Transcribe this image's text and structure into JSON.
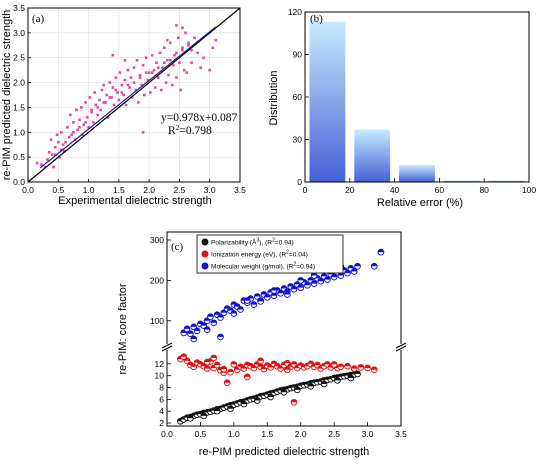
{
  "chart_data": [
    {
      "panel_label": "(a)",
      "type": "scatter",
      "xlabel": "Experimental dielectric strength",
      "ylabel": "re-PIM predicted dielectric strength",
      "xlim": [
        0,
        3.5
      ],
      "ylim": [
        0,
        3.5
      ],
      "xticks": [
        "0.0",
        "0.5",
        "1.0",
        "1.5",
        "2.0",
        "2.5",
        "3.0",
        "3.5"
      ],
      "yticks": [
        "0.0",
        "0.5",
        "1.0",
        "1.5",
        "2.0",
        "2.5",
        "3.0",
        "3.5"
      ],
      "grid": true,
      "fit_equation": "y=0.978x+0.087",
      "r2_label": "R",
      "r2_value": "=0.798",
      "fit_line": {
        "slope": 0.978,
        "intercept": 0.087,
        "x_range": [
          0.2,
          3.1
        ],
        "color": "#1a1aa0"
      },
      "identity_line": {
        "x_range": [
          0,
          3.5
        ],
        "color": "#000000"
      },
      "marker_color": "#e8479c",
      "x": [
        0.15,
        0.22,
        0.28,
        0.32,
        0.35,
        0.38,
        0.4,
        0.42,
        0.45,
        0.48,
        0.5,
        0.52,
        0.55,
        0.58,
        0.6,
        0.65,
        0.68,
        0.7,
        0.72,
        0.75,
        0.78,
        0.8,
        0.82,
        0.85,
        0.88,
        0.9,
        0.92,
        0.95,
        0.98,
        1.0,
        1.02,
        1.05,
        1.08,
        1.1,
        1.12,
        1.15,
        1.18,
        1.2,
        1.22,
        1.25,
        1.28,
        1.3,
        1.32,
        1.35,
        1.38,
        1.4,
        1.42,
        1.45,
        1.48,
        1.5,
        1.52,
        1.55,
        1.58,
        1.6,
        1.62,
        1.65,
        1.68,
        1.7,
        1.72,
        1.75,
        1.78,
        1.8,
        1.82,
        1.85,
        1.88,
        1.9,
        1.92,
        1.95,
        1.98,
        2.0,
        2.02,
        2.05,
        2.08,
        2.1,
        2.12,
        2.15,
        2.18,
        2.2,
        2.22,
        2.25,
        2.28,
        2.3,
        2.32,
        2.35,
        2.38,
        2.4,
        2.42,
        2.45,
        2.48,
        2.5,
        2.52,
        2.55,
        2.58,
        2.6,
        2.62,
        2.65,
        2.7,
        2.75,
        2.8,
        2.85,
        2.9,
        3.0,
        3.05,
        3.1,
        0.45,
        0.55,
        0.62,
        0.75,
        0.85,
        0.95,
        1.05,
        1.15,
        1.25,
        1.35,
        1.45,
        1.55,
        1.65,
        1.75,
        1.85,
        1.95,
        2.05,
        2.15,
        2.25,
        2.35,
        2.45,
        2.55,
        2.65,
        2.45,
        2.55,
        1.9,
        2.3,
        1.6,
        1.4,
        2.7
      ],
      "y": [
        0.38,
        0.35,
        0.3,
        0.45,
        0.6,
        0.85,
        0.55,
        0.3,
        0.7,
        0.95,
        0.8,
        0.5,
        1.0,
        0.75,
        0.62,
        1.1,
        0.9,
        1.35,
        0.95,
        1.2,
        0.85,
        1.45,
        1.05,
        1.25,
        1.5,
        0.95,
        1.15,
        1.6,
        1.3,
        1.1,
        1.7,
        1.4,
        1.2,
        1.8,
        1.55,
        1.35,
        1.65,
        1.45,
        1.85,
        1.95,
        1.6,
        1.75,
        1.3,
        2.0,
        1.7,
        1.9,
        1.55,
        2.1,
        1.8,
        1.65,
        2.2,
        1.95,
        1.75,
        2.05,
        1.55,
        2.25,
        1.9,
        2.1,
        1.7,
        2.3,
        1.85,
        2.45,
        1.6,
        2.15,
        1.95,
        2.35,
        1.75,
        2.5,
        2.05,
        2.2,
        1.8,
        2.55,
        2.25,
        1.9,
        2.4,
        2.1,
        2.6,
        1.85,
        2.3,
        2.7,
        2.0,
        2.45,
        2.15,
        2.8,
        1.95,
        2.35,
        2.55,
        2.1,
        2.9,
        2.4,
        1.85,
        2.65,
        2.25,
        3.0,
        2.2,
        2.75,
        2.4,
        2.9,
        2.6,
        2.3,
        2.5,
        2.25,
        2.7,
        2.85,
        0.55,
        0.65,
        0.8,
        1.0,
        1.1,
        1.2,
        1.45,
        1.5,
        1.6,
        1.7,
        1.85,
        1.8,
        1.95,
        2.0,
        2.1,
        2.2,
        2.2,
        2.3,
        2.4,
        2.45,
        2.6,
        2.7,
        2.8,
        3.15,
        3.1,
        1.0,
        2.85,
        2.45,
        2.55,
        2.65
      ]
    },
    {
      "panel_label": "(b)",
      "type": "bar",
      "xlabel": "Relative error (%)",
      "ylabel": "Distribution",
      "xlim": [
        0,
        100
      ],
      "ylim": [
        0,
        120
      ],
      "xticks": [
        "0",
        "20",
        "40",
        "60",
        "80",
        "100"
      ],
      "yticks": [
        "0",
        "30",
        "60",
        "90",
        "120"
      ],
      "grid": false,
      "bin_edges": [
        0,
        20,
        40,
        60,
        80,
        100
      ],
      "values": [
        113,
        37,
        12,
        1,
        1
      ],
      "bar_color_top": "#bfe6ff",
      "bar_color_bottom": "#4a66d8"
    },
    {
      "panel_label": "(c)",
      "type": "scatter",
      "xlabel": "re-PIM predicted dielectric strength",
      "ylabel": "re-PIM: core factor",
      "xlim": [
        0,
        3.5
      ],
      "xticks": [
        "0.0",
        "0.5",
        "1.0",
        "1.5",
        "2.0",
        "2.5",
        "3.0",
        "3.5"
      ],
      "y_lower_ticks": [
        "2",
        "4",
        "6",
        "8",
        "10",
        "12"
      ],
      "y_upper_ticks": [
        "100",
        "200",
        "300"
      ],
      "y_break": true,
      "lower_ylim": [
        2,
        14
      ],
      "upper_ylim": [
        40,
        300
      ],
      "legend_placement": "top-left",
      "series": [
        {
          "name": "Polarizability (Å",
          "name_sup": "3",
          "name_tail": "), (R",
          "r_sup": "2",
          "r_tail": "=0.94)",
          "color": "#111111",
          "segment": "lower",
          "x": [
            0.2,
            0.25,
            0.3,
            0.35,
            0.4,
            0.45,
            0.5,
            0.55,
            0.6,
            0.65,
            0.7,
            0.75,
            0.8,
            0.85,
            0.9,
            0.95,
            1.0,
            1.05,
            1.1,
            1.15,
            1.2,
            1.25,
            1.3,
            1.35,
            1.4,
            1.45,
            1.5,
            1.55,
            1.6,
            1.65,
            1.7,
            1.75,
            1.8,
            1.85,
            1.9,
            1.95,
            2.0,
            2.05,
            2.1,
            2.15,
            2.2,
            2.25,
            2.3,
            2.35,
            2.4,
            2.45,
            2.5,
            2.55,
            2.6,
            2.65,
            2.7,
            2.75,
            2.8,
            2.85,
            0.35,
            0.55,
            0.75,
            0.95,
            1.15,
            1.35,
            1.55,
            1.75,
            1.95,
            2.15,
            2.35,
            2.55,
            2.75
          ],
          "y": [
            2.3,
            2.6,
            2.9,
            3.0,
            3.2,
            3.4,
            3.5,
            3.7,
            3.8,
            3.9,
            4.1,
            4.3,
            4.4,
            4.6,
            4.8,
            5.0,
            5.1,
            5.3,
            5.5,
            5.6,
            5.8,
            6.0,
            6.1,
            6.3,
            6.5,
            6.6,
            6.8,
            7.0,
            7.1,
            7.3,
            7.5,
            7.6,
            7.7,
            7.9,
            8.0,
            8.1,
            8.3,
            8.4,
            8.5,
            8.7,
            8.8,
            8.9,
            9.0,
            9.2,
            9.3,
            9.4,
            9.6,
            9.7,
            9.8,
            9.9,
            10.0,
            10.1,
            10.2,
            10.3,
            2.8,
            3.2,
            4.0,
            4.4,
            5.2,
            5.8,
            6.4,
            7.2,
            7.6,
            8.2,
            8.6,
            9.2,
            9.6
          ]
        },
        {
          "name": "Ionization energy (eV), (R",
          "r_sup": "2",
          "r_tail": "=0.04)",
          "color": "#e01010",
          "segment": "lower",
          "x": [
            0.2,
            0.25,
            0.3,
            0.35,
            0.4,
            0.45,
            0.5,
            0.55,
            0.6,
            0.65,
            0.7,
            0.75,
            0.8,
            0.85,
            0.9,
            0.95,
            1.0,
            1.05,
            1.1,
            1.15,
            1.2,
            1.25,
            1.3,
            1.35,
            1.4,
            1.45,
            1.5,
            1.55,
            1.6,
            1.65,
            1.7,
            1.75,
            1.8,
            1.85,
            1.9,
            1.95,
            2.0,
            2.05,
            2.1,
            2.15,
            2.2,
            2.25,
            2.3,
            2.35,
            2.4,
            2.45,
            2.5,
            2.55,
            2.6,
            2.7,
            2.8,
            2.9,
            3.0,
            3.1,
            0.6,
            0.85,
            1.4,
            1.8,
            1.9,
            0.7,
            1.2,
            2.5
          ],
          "y": [
            12.8,
            13.2,
            12.5,
            11.8,
            11.5,
            12.2,
            11.9,
            11.6,
            11.2,
            12.4,
            11.3,
            11.8,
            10.9,
            10.5,
            8.8,
            10.6,
            11.9,
            11.0,
            11.5,
            11.2,
            11.8,
            11.6,
            11.3,
            11.9,
            11.5,
            11.1,
            11.7,
            11.4,
            12.0,
            11.6,
            11.2,
            11.8,
            12.1,
            11.5,
            11.9,
            11.3,
            11.7,
            11.4,
            11.6,
            12.0,
            11.5,
            11.8,
            11.2,
            11.6,
            11.9,
            11.4,
            11.7,
            11.3,
            11.5,
            11.6,
            11.2,
            11.4,
            11.3,
            11.0,
            12.3,
            11.1,
            12.5,
            11.0,
            5.5,
            13.0,
            9.8,
            11.9
          ]
        },
        {
          "name": "Molecular weight (g/mol), (R",
          "r_sup": "2",
          "r_tail": "=0.94)",
          "color": "#1010d0",
          "segment": "upper",
          "x": [
            0.25,
            0.3,
            0.35,
            0.4,
            0.45,
            0.5,
            0.55,
            0.6,
            0.65,
            0.7,
            0.75,
            0.8,
            0.85,
            0.9,
            0.95,
            1.0,
            1.05,
            1.1,
            1.15,
            1.2,
            1.25,
            1.3,
            1.35,
            1.4,
            1.45,
            1.5,
            1.55,
            1.6,
            1.65,
            1.7,
            1.75,
            1.8,
            1.85,
            1.9,
            1.95,
            2.0,
            2.05,
            2.1,
            2.15,
            2.2,
            2.25,
            2.3,
            2.35,
            2.4,
            2.45,
            2.5,
            2.55,
            2.6,
            2.65,
            2.7,
            2.75,
            2.8,
            2.85,
            3.1,
            3.2,
            0.4,
            0.6,
            0.8,
            1.0,
            1.2,
            1.4,
            1.6,
            1.8,
            2.0,
            2.2,
            2.4,
            2.6
          ],
          "y": [
            70,
            80,
            68,
            85,
            75,
            92,
            88,
            100,
            110,
            95,
            115,
            60,
            120,
            130,
            125,
            140,
            135,
            128,
            150,
            145,
            155,
            140,
            160,
            150,
            165,
            158,
            170,
            162,
            175,
            168,
            180,
            172,
            185,
            178,
            190,
            182,
            195,
            188,
            200,
            192,
            205,
            198,
            210,
            202,
            215,
            208,
            220,
            212,
            225,
            218,
            230,
            222,
            235,
            235,
            270,
            55,
            78,
            108,
            118,
            150,
            148,
            175,
            165,
            200,
            212,
            228,
            235
          ]
        }
      ]
    }
  ]
}
